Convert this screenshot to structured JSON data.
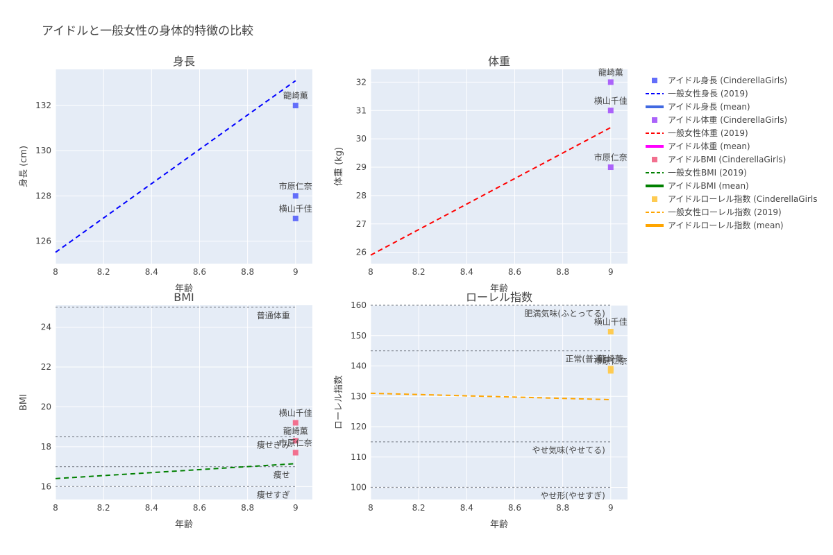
{
  "title": "アイドルと一般女性の身体的特徴の比較",
  "colors": {
    "plot_bg": "#E5ECF6",
    "grid": "#ffffff",
    "ref_line": "#8a8f99",
    "height": "#636EFA",
    "height_line": "#0000ff",
    "height_mean": "#4169E1",
    "weight": "#AB63FA",
    "weight_line": "#ff0000",
    "weight_mean": "#ff00ff",
    "bmi": "#EF553B",
    "bmi_marker": "#F2708F",
    "bmi_line": "#008000",
    "bmi_mean": "#008000",
    "rohrer": "#FECB52",
    "rohrer_line": "#FFA500",
    "rohrer_mean": "#FFA500"
  },
  "legend": [
    {
      "label": "アイドル身長 (CinderellaGirls)",
      "kind": "marker",
      "color": "#636EFA"
    },
    {
      "label": "一般女性身長 (2019)",
      "kind": "dash",
      "color": "#0000ff"
    },
    {
      "label": "アイドル身長 (mean)",
      "kind": "solid",
      "color": "#4169E1"
    },
    {
      "label": "アイドル体重 (CinderellaGirls)",
      "kind": "marker",
      "color": "#AB63FA"
    },
    {
      "label": "一般女性体重 (2019)",
      "kind": "dash",
      "color": "#ff0000"
    },
    {
      "label": "アイドル体重 (mean)",
      "kind": "solid",
      "color": "#ff00ff"
    },
    {
      "label": "アイドルBMI (CinderellaGirls)",
      "kind": "marker",
      "color": "#F2708F"
    },
    {
      "label": "一般女性BMI (2019)",
      "kind": "dash",
      "color": "#008000"
    },
    {
      "label": "アイドルBMI (mean)",
      "kind": "solid",
      "color": "#008000"
    },
    {
      "label": "アイドルローレル指数 (CinderellaGirls",
      "kind": "marker",
      "color": "#FECB52"
    },
    {
      "label": "一般女性ローレル指数 (2019)",
      "kind": "dash",
      "color": "#FFA500"
    },
    {
      "label": "アイドルローレル指数 (mean)",
      "kind": "solid",
      "color": "#FFA500"
    }
  ],
  "chart_data": [
    {
      "type": "scatter",
      "title": "身長",
      "xlabel": "年齢",
      "ylabel": "身長 (cm)",
      "xlim": [
        8,
        9.07
      ],
      "ylim": [
        125.0,
        133.6
      ],
      "xticks": [
        8,
        8.2,
        8.4,
        8.6,
        8.8,
        9
      ],
      "xtick_labels": [
        "8",
        "8.2",
        "8.4",
        "8.6",
        "8.8",
        "9"
      ],
      "yticks": [
        126,
        128,
        130,
        132
      ],
      "ytick_labels": [
        "126",
        "128",
        "130",
        "132"
      ],
      "idols": [
        {
          "name": "龍崎薫",
          "x": 9,
          "y": 132
        },
        {
          "name": "市原仁奈",
          "x": 9,
          "y": 128
        },
        {
          "name": "横山千佳",
          "x": 9,
          "y": 127
        }
      ],
      "marker_color": "#636EFA",
      "general_line": {
        "x": [
          8,
          9
        ],
        "y": [
          125.5,
          133.1
        ],
        "color": "#0000ff"
      },
      "ref_lines": []
    },
    {
      "type": "scatter",
      "title": "体重",
      "xlabel": "年齢",
      "ylabel": "体重 (kg)",
      "xlim": [
        8,
        9.07
      ],
      "ylim": [
        25.6,
        32.45
      ],
      "xticks": [
        8,
        8.2,
        8.4,
        8.6,
        8.8,
        9
      ],
      "xtick_labels": [
        "8",
        "8.2",
        "8.4",
        "8.6",
        "8.8",
        "9"
      ],
      "yticks": [
        26,
        27,
        28,
        29,
        30,
        31,
        32
      ],
      "ytick_labels": [
        "26",
        "27",
        "28",
        "29",
        "30",
        "31",
        "32"
      ],
      "idols": [
        {
          "name": "龍崎薫",
          "x": 9,
          "y": 32
        },
        {
          "name": "横山千佳",
          "x": 9,
          "y": 31
        },
        {
          "name": "市原仁奈",
          "x": 9,
          "y": 29
        }
      ],
      "marker_color": "#AB63FA",
      "general_line": {
        "x": [
          8,
          9
        ],
        "y": [
          25.9,
          30.4
        ],
        "color": "#ff0000"
      },
      "ref_lines": []
    },
    {
      "type": "scatter",
      "title": "BMI",
      "xlabel": "年齢",
      "ylabel": "BMI",
      "xlim": [
        8,
        9.07
      ],
      "ylim": [
        15.35,
        25.1
      ],
      "xticks": [
        8,
        8.2,
        8.4,
        8.6,
        8.8,
        9
      ],
      "xtick_labels": [
        "8",
        "8.2",
        "8.4",
        "8.6",
        "8.8",
        "9"
      ],
      "yticks": [
        16,
        18,
        20,
        22,
        24
      ],
      "ytick_labels": [
        "16",
        "18",
        "20",
        "22",
        "24"
      ],
      "idols": [
        {
          "name": "横山千佳",
          "x": 9,
          "y": 19.2
        },
        {
          "name": "龍崎薫",
          "x": 9,
          "y": 18.3
        },
        {
          "name": "市原仁奈",
          "x": 9,
          "y": 17.7
        }
      ],
      "marker_color": "#F2708F",
      "general_line": {
        "x": [
          8,
          9
        ],
        "y": [
          16.4,
          17.15
        ],
        "color": "#008000"
      },
      "ref_lines": [
        {
          "y": 25,
          "label": "普通体重",
          "pos": "below"
        },
        {
          "y": 18.5,
          "label": "痩せぎみ",
          "pos": "below"
        },
        {
          "y": 17,
          "label": "痩せ",
          "pos": "below"
        },
        {
          "y": 16,
          "label": "痩せすぎ",
          "pos": "below"
        }
      ]
    },
    {
      "type": "scatter",
      "title": "ローレル指数",
      "xlabel": "年齢",
      "ylabel": "ローレル指数",
      "xlim": [
        8,
        9.07
      ],
      "ylim": [
        96,
        160
      ],
      "xticks": [
        8,
        8.2,
        8.4,
        8.6,
        8.8,
        9
      ],
      "xtick_labels": [
        "8",
        "8.2",
        "8.4",
        "8.6",
        "8.8",
        "9"
      ],
      "yticks": [
        100,
        110,
        120,
        130,
        140,
        150,
        160
      ],
      "ytick_labels": [
        "100",
        "110",
        "120",
        "130",
        "140",
        "150",
        "160"
      ],
      "idols": [
        {
          "name": "横山千佳",
          "x": 9,
          "y": 151.3
        },
        {
          "name": "龍崎薫",
          "x": 9,
          "y": 139.1
        },
        {
          "name": "市原仁奈",
          "x": 9,
          "y": 138.4
        }
      ],
      "marker_color": "#FECB52",
      "general_line": {
        "x": [
          8,
          9
        ],
        "y": [
          131,
          128.9
        ],
        "color": "#FFA500"
      },
      "ref_lines": [
        {
          "y": 160,
          "label": "肥満気味(ふとってる)",
          "pos": "below"
        },
        {
          "y": 145,
          "label": "正常(普通)",
          "pos": "below"
        },
        {
          "y": 115,
          "label": "やせ気味(やせてる)",
          "pos": "below"
        },
        {
          "y": 100,
          "label": "やせ形(やせすぎ)",
          "pos": "below"
        }
      ]
    }
  ]
}
